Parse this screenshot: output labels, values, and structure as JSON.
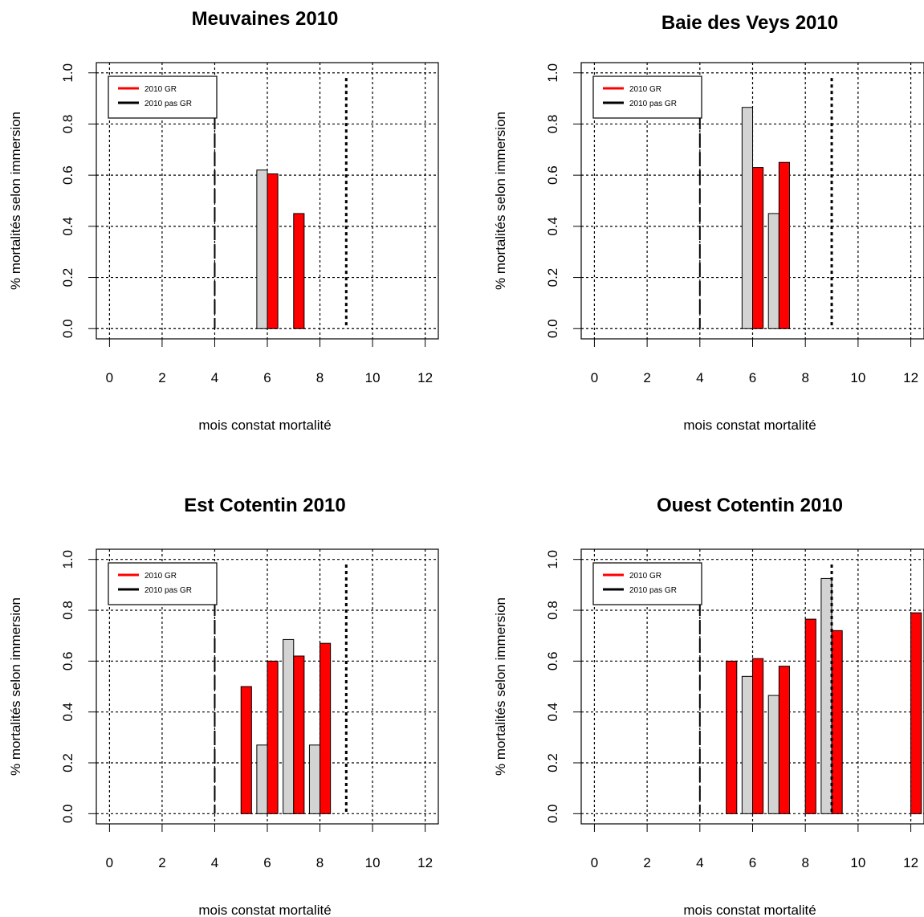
{
  "colors": {
    "gr": "#ff0000",
    "pas_gr": "#d3d3d3",
    "grid": "#000000"
  },
  "chart_data": [
    {
      "type": "bar",
      "title": "Meuvaines 2010",
      "xlabel": "mois constat mortalité",
      "ylabel": "% mortalités selon immersion",
      "xlim": [
        -0.5,
        12.5
      ],
      "ylim": [
        -0.04,
        1.04
      ],
      "xticks": [
        "0",
        "2",
        "4",
        "6",
        "8",
        "10",
        "12"
      ],
      "yticks": [
        "0.0",
        "0.2",
        "0.4",
        "0.6",
        "0.8",
        "1.0"
      ],
      "grid": true,
      "legend": {
        "position": "top-left",
        "entries": [
          {
            "label": "2010 GR",
            "color": "#ff0000"
          },
          {
            "label": "2010 pas GR",
            "color": "#000000"
          }
        ]
      },
      "vlines": [
        {
          "x": 4,
          "style": "longdash"
        },
        {
          "x": 9,
          "style": "dotted"
        }
      ],
      "series": [
        {
          "name": "2010 pas GR",
          "color": "#d3d3d3",
          "points": [
            [
              5.8,
              0.62
            ]
          ]
        },
        {
          "name": "2010 GR",
          "color": "#ff0000",
          "points": [
            [
              6.2,
              0.605
            ],
            [
              7.2,
              0.45
            ]
          ]
        }
      ]
    },
    {
      "type": "bar",
      "title": "Baie des Veys 2010",
      "xlabel": "mois constat mortalité",
      "ylabel": "% mortalités selon immersion",
      "xlim": [
        -0.5,
        12.5
      ],
      "ylim": [
        -0.04,
        1.04
      ],
      "xticks": [
        "0",
        "2",
        "4",
        "6",
        "8",
        "10",
        "12"
      ],
      "yticks": [
        "0.0",
        "0.2",
        "0.4",
        "0.6",
        "0.8",
        "1.0"
      ],
      "grid": true,
      "legend": {
        "position": "top-left",
        "entries": [
          {
            "label": "2010 GR",
            "color": "#ff0000"
          },
          {
            "label": "2010 pas GR",
            "color": "#000000"
          }
        ]
      },
      "vlines": [
        {
          "x": 4,
          "style": "longdash"
        },
        {
          "x": 9,
          "style": "dotted"
        }
      ],
      "series": [
        {
          "name": "2010 pas GR",
          "color": "#d3d3d3",
          "points": [
            [
              5.8,
              0.865
            ],
            [
              6.8,
              0.45
            ]
          ]
        },
        {
          "name": "2010 GR",
          "color": "#ff0000",
          "points": [
            [
              6.2,
              0.63
            ],
            [
              7.2,
              0.65
            ]
          ]
        }
      ]
    },
    {
      "type": "bar",
      "title": "Est Cotentin 2010",
      "xlabel": "mois constat mortalité",
      "ylabel": "% mortalités selon immersion",
      "xlim": [
        -0.5,
        12.5
      ],
      "ylim": [
        -0.04,
        1.04
      ],
      "xticks": [
        "0",
        "2",
        "4",
        "6",
        "8",
        "10",
        "12"
      ],
      "yticks": [
        "0.0",
        "0.2",
        "0.4",
        "0.6",
        "0.8",
        "1.0"
      ],
      "grid": true,
      "legend": {
        "position": "top-left",
        "entries": [
          {
            "label": "2010 GR",
            "color": "#ff0000"
          },
          {
            "label": "2010 pas GR",
            "color": "#000000"
          }
        ]
      },
      "vlines": [
        {
          "x": 4,
          "style": "longdash"
        },
        {
          "x": 9,
          "style": "dotted"
        }
      ],
      "series": [
        {
          "name": "2010 pas GR",
          "color": "#d3d3d3",
          "points": [
            [
              5.8,
              0.27
            ],
            [
              6.8,
              0.685
            ],
            [
              7.8,
              0.27
            ]
          ]
        },
        {
          "name": "2010 GR",
          "color": "#ff0000",
          "points": [
            [
              5.2,
              0.5
            ],
            [
              6.2,
              0.6
            ],
            [
              7.2,
              0.62
            ],
            [
              8.2,
              0.67
            ]
          ]
        }
      ]
    },
    {
      "type": "bar",
      "title": "Ouest Cotentin 2010",
      "xlabel": "mois constat mortalité",
      "ylabel": "% mortalités selon immersion",
      "xlim": [
        -0.5,
        12.5
      ],
      "ylim": [
        -0.04,
        1.04
      ],
      "xticks": [
        "0",
        "2",
        "4",
        "6",
        "8",
        "10",
        "12"
      ],
      "yticks": [
        "0.0",
        "0.2",
        "0.4",
        "0.6",
        "0.8",
        "1.0"
      ],
      "grid": true,
      "legend": {
        "position": "top-left",
        "entries": [
          {
            "label": "2010 GR",
            "color": "#ff0000"
          },
          {
            "label": "2010 pas GR",
            "color": "#000000"
          }
        ]
      },
      "vlines": [
        {
          "x": 4,
          "style": "longdash"
        },
        {
          "x": 9,
          "style": "dotted"
        }
      ],
      "series": [
        {
          "name": "2010 pas GR",
          "color": "#d3d3d3",
          "points": [
            [
              5.8,
              0.54
            ],
            [
              6.8,
              0.465
            ],
            [
              8.8,
              0.925
            ]
          ]
        },
        {
          "name": "2010 GR",
          "color": "#ff0000",
          "points": [
            [
              5.2,
              0.6
            ],
            [
              6.2,
              0.61
            ],
            [
              7.2,
              0.58
            ],
            [
              8.2,
              0.765
            ],
            [
              9.2,
              0.72
            ],
            [
              12.2,
              0.79
            ]
          ]
        }
      ]
    }
  ]
}
